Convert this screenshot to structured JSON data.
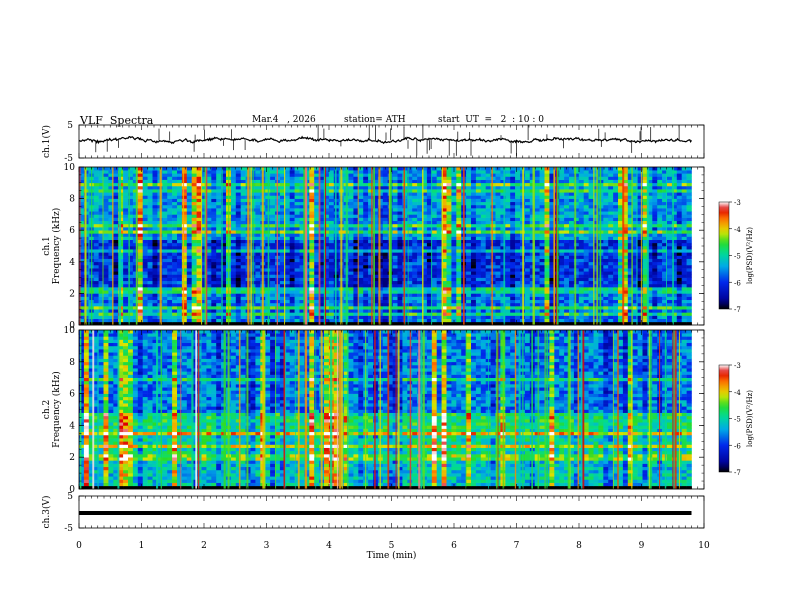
{
  "header": {
    "title": "VLF  Spectra",
    "date": "Mar.4   , 2026",
    "station": "station= ATH",
    "start_ut": "start  UT  =   2  : 10 : 0"
  },
  "chart_data": {
    "type": "heatmap",
    "title": "VLF  Spectra",
    "xlabel": "Time  (min)",
    "xlim": [
      0,
      10
    ],
    "x_ticks": [
      "0",
      "1",
      "2",
      "3",
      "4",
      "5",
      "6",
      "7",
      "8",
      "9",
      "10"
    ],
    "data_end_min": 9.8,
    "panels": [
      {
        "name": "ch1-waveform",
        "type": "line",
        "ylabel": "ch.1(V)",
        "ylim": [
          -5,
          5
        ],
        "y_ticks": [
          "5",
          "-5"
        ],
        "baseline_v": 0.4,
        "noise_v": 0.5,
        "color": "#000000"
      },
      {
        "name": "ch1-spectrogram",
        "type": "heatmap",
        "channel_label": "ch.1",
        "ylabel": "Frequency  (kHz)",
        "ylim": [
          0,
          10
        ],
        "y_ticks": [
          "0",
          "2",
          "4",
          "6",
          "8",
          "10"
        ],
        "colorbar": {
          "label": "log(PSD)(V²/Hz)",
          "range": [
            -7,
            -3
          ],
          "ticks": [
            "-3",
            "-4",
            "-5",
            "-6",
            "-7"
          ]
        },
        "band_structure": [
          {
            "range_khz": [
              0.0,
              0.3
            ],
            "log_psd": -7.0
          },
          {
            "range_khz": [
              0.3,
              2.0
            ],
            "log_psd": -5.6
          },
          {
            "range_khz": [
              2.0,
              2.4
            ],
            "log_psd": -4.9
          },
          {
            "range_khz": [
              2.4,
              5.5
            ],
            "log_psd": -6.0
          },
          {
            "range_khz": [
              5.5,
              10.0
            ],
            "log_psd": -5.4
          }
        ]
      },
      {
        "name": "ch2-spectrogram",
        "type": "heatmap",
        "channel_label": "ch.2",
        "ylabel": "Frequency  (kHz)",
        "ylim": [
          0,
          10
        ],
        "y_ticks": [
          "0",
          "2",
          "4",
          "6",
          "8",
          "10"
        ],
        "colorbar": {
          "label": "log(PSD)(V²/Hz)",
          "range": [
            -7,
            -3
          ],
          "ticks": [
            "-3",
            "-4",
            "-5",
            "-6",
            "-7"
          ]
        },
        "band_structure": [
          {
            "range_khz": [
              0.0,
              0.2
            ],
            "log_psd": -7.0
          },
          {
            "range_khz": [
              0.2,
              1.8
            ],
            "log_psd": -5.2
          },
          {
            "range_khz": [
              1.8,
              2.2
            ],
            "log_psd": -4.4
          },
          {
            "range_khz": [
              2.2,
              3.5
            ],
            "log_psd": -5.0
          },
          {
            "range_khz": [
              3.5,
              4.8
            ],
            "log_psd": -4.8
          },
          {
            "range_khz": [
              4.8,
              10.0
            ],
            "log_psd": -5.6
          }
        ]
      },
      {
        "name": "ch3-waveform",
        "type": "line",
        "ylabel": "ch.3(V)",
        "ylim": [
          -5,
          5
        ],
        "y_ticks": [
          "5",
          "-5"
        ],
        "baseline_v": -0.3,
        "noise_v": 0.0,
        "color": "#000000"
      }
    ]
  }
}
